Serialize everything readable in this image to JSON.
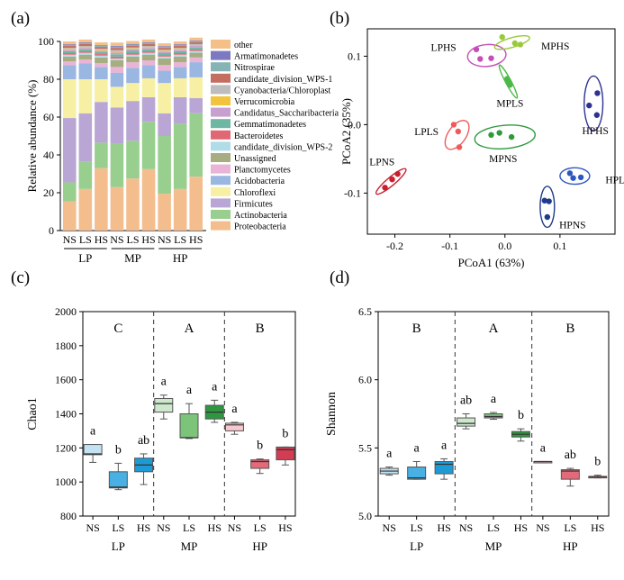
{
  "panel_labels": [
    "(a)",
    "(b)",
    "(c)",
    "(d)"
  ],
  "chart_data": [
    {
      "id": "a",
      "type": "bar",
      "subtype": "stacked-percent",
      "ylabel": "Relative abundance (%)",
      "ylim": [
        0,
        100
      ],
      "yticks": [
        0,
        20,
        40,
        60,
        80,
        100
      ],
      "groups": [
        {
          "name": "LP",
          "samples": [
            "NS",
            "LS",
            "HS"
          ]
        },
        {
          "name": "MP",
          "samples": [
            "NS",
            "LS",
            "HS"
          ]
        },
        {
          "name": "HP",
          "samples": [
            "NS",
            "LS",
            "HS"
          ]
        }
      ],
      "categories": [
        "LP-NS",
        "LP-LS",
        "LP-HS",
        "MP-NS",
        "MP-LS",
        "MP-HS",
        "HP-NS",
        "HP-LS",
        "HP-HS"
      ],
      "legend_position": "right",
      "series": [
        {
          "name": "Proteobacteria",
          "color": "#F4BD8E",
          "values": [
            15.5,
            22,
            33,
            23,
            27.5,
            32.5,
            19.5,
            22,
            28.5
          ]
        },
        {
          "name": "Actinobacteria",
          "color": "#98CE8E",
          "values": [
            10,
            14.5,
            13.5,
            23,
            20,
            25,
            30.5,
            34.5,
            33.5
          ]
        },
        {
          "name": "Firmicutes",
          "color": "#B9A6D4",
          "values": [
            34,
            25.5,
            21.5,
            19,
            21,
            13,
            12,
            14,
            8
          ]
        },
        {
          "name": "Chloroflexi",
          "color": "#F7F0A4",
          "values": [
            20.5,
            18,
            12,
            11,
            9.5,
            10,
            16,
            10,
            11
          ]
        },
        {
          "name": "Acidobacteria",
          "color": "#9AB7E2",
          "values": [
            7.5,
            8.5,
            6.5,
            7.5,
            8,
            7,
            6.5,
            6,
            8
          ]
        },
        {
          "name": "Planctomycetes",
          "color": "#E9B4D5",
          "values": [
            2,
            2,
            2,
            3,
            3,
            2.5,
            3,
            2.5,
            2.5
          ]
        },
        {
          "name": "Unassigned",
          "color": "#A7AD80",
          "values": [
            2.5,
            2.5,
            3,
            3.5,
            3,
            3,
            3.5,
            3,
            2.5
          ]
        },
        {
          "name": "candidate_division_WPS-2",
          "color": "#B0DCE8",
          "values": [
            1,
            1,
            1,
            1,
            1,
            1,
            1,
            1,
            1
          ]
        },
        {
          "name": "Bacteroidetes",
          "color": "#E06874",
          "values": [
            0.8,
            0.8,
            0.8,
            1,
            0.8,
            0.8,
            0.8,
            0.8,
            0.8
          ]
        },
        {
          "name": "Gemmatimonadetes",
          "color": "#6FB7A2",
          "values": [
            1,
            1,
            1,
            1.2,
            1.2,
            1,
            1,
            1,
            1
          ]
        },
        {
          "name": "Candidatus_Saccharibacteria",
          "color": "#C7A0CF",
          "values": [
            0.8,
            0.8,
            0.8,
            1,
            0.8,
            0.8,
            0.8,
            0.8,
            0.8
          ]
        },
        {
          "name": "Verrucomicrobia",
          "color": "#F2C33C",
          "values": [
            0.5,
            0.5,
            0.5,
            0.6,
            0.5,
            0.5,
            0.5,
            0.5,
            0.5
          ]
        },
        {
          "name": "Cyanobacteria/Chloroplast",
          "color": "#BDBDBD",
          "values": [
            0.5,
            0.5,
            0.5,
            0.6,
            0.5,
            0.5,
            0.5,
            0.5,
            0.5
          ]
        },
        {
          "name": "candidate_division_WPS-1",
          "color": "#C46E62",
          "values": [
            1,
            1,
            1,
            1.2,
            1,
            1,
            1,
            1,
            1
          ]
        },
        {
          "name": "Nitrospirae",
          "color": "#86B4B4",
          "values": [
            0.5,
            0.5,
            0.5,
            0.6,
            0.5,
            0.5,
            0.5,
            0.5,
            0.5
          ]
        },
        {
          "name": "Armatimonadetes",
          "color": "#7C79C0",
          "values": [
            0.4,
            0.4,
            0.4,
            0.4,
            0.4,
            0.4,
            0.4,
            0.4,
            0.4
          ]
        },
        {
          "name": "other",
          "color": "#F4C088",
          "values": [
            1.5,
            1.5,
            1.5,
            1.8,
            1.5,
            1.5,
            1.5,
            1.5,
            1.5
          ]
        }
      ]
    },
    {
      "id": "b",
      "type": "scatter",
      "xlabel": "PCoA1 (63%)",
      "ylabel": "PCoA2 (35%)",
      "xlim": [
        -0.25,
        0.2
      ],
      "ylim": [
        -0.16,
        0.14
      ],
      "xticks": [
        -0.2,
        -0.1,
        0.0,
        0.1
      ],
      "yticks": [
        -0.1,
        0.0,
        0.1
      ],
      "grid": false,
      "series": [
        {
          "name": "LPNS",
          "color": "#C8202E",
          "points": [
            [
              -0.218,
              -0.092
            ],
            [
              -0.205,
              -0.08
            ],
            [
              -0.195,
              -0.072
            ]
          ],
          "ellipse": {
            "cx": -0.207,
            "cy": -0.083,
            "rx": 0.035,
            "ry": 0.006,
            "angle": -40
          }
        },
        {
          "name": "LPLS",
          "color": "#EE5A5A",
          "points": [
            [
              -0.093,
              0.0
            ],
            [
              -0.085,
              -0.01
            ],
            [
              -0.083,
              -0.033
            ]
          ],
          "ellipse": {
            "cx": -0.087,
            "cy": -0.015,
            "rx": 0.03,
            "ry": 0.013,
            "angle": -55
          }
        },
        {
          "name": "LPHS",
          "color": "#C44FB8",
          "points": [
            [
              -0.052,
              0.11
            ],
            [
              -0.045,
              0.096
            ],
            [
              -0.025,
              0.097
            ]
          ],
          "ellipse": {
            "cx": -0.033,
            "cy": 0.101,
            "rx": 0.035,
            "ry": 0.016,
            "angle": -5
          }
        },
        {
          "name": "MPNS",
          "color": "#2F9A3C",
          "points": [
            [
              -0.025,
              -0.015
            ],
            [
              -0.01,
              -0.012
            ],
            [
              0.012,
              -0.018
            ]
          ],
          "ellipse": {
            "cx": 0.0,
            "cy": -0.018,
            "rx": 0.055,
            "ry": 0.017,
            "angle": -5
          }
        },
        {
          "name": "MPLS",
          "color": "#4DB848",
          "points": [
            [
              0.004,
              0.067
            ],
            [
              0.007,
              0.063
            ],
            [
              0.009,
              0.058
            ]
          ],
          "ellipse": {
            "cx": 0.006,
            "cy": 0.063,
            "rx": 0.034,
            "ry": 0.004,
            "angle": 62
          }
        },
        {
          "name": "MPHS",
          "color": "#99C93A",
          "points": [
            [
              -0.005,
              0.128
            ],
            [
              0.018,
              0.119
            ],
            [
              0.028,
              0.117
            ]
          ],
          "ellipse": {
            "cx": 0.013,
            "cy": 0.12,
            "rx": 0.033,
            "ry": 0.007,
            "angle": -16
          }
        },
        {
          "name": "HPNS",
          "color": "#1E3A8A",
          "points": [
            [
              0.072,
              -0.111
            ],
            [
              0.08,
              -0.112
            ],
            [
              0.077,
              -0.135
            ]
          ],
          "ellipse": {
            "cx": 0.077,
            "cy": -0.12,
            "rx": 0.013,
            "ry": 0.03,
            "angle": 0
          }
        },
        {
          "name": "HPLS",
          "color": "#2D57C0",
          "points": [
            [
              0.118,
              -0.071
            ],
            [
              0.124,
              -0.078
            ],
            [
              0.138,
              -0.077
            ]
          ],
          "ellipse": {
            "cx": 0.127,
            "cy": -0.075,
            "rx": 0.027,
            "ry": 0.012,
            "angle": 0
          }
        },
        {
          "name": "HPHS",
          "color": "#2E3192",
          "points": [
            [
              0.153,
              0.028
            ],
            [
              0.168,
              0.046
            ],
            [
              0.167,
              0.014
            ]
          ],
          "ellipse": {
            "cx": 0.161,
            "cy": 0.031,
            "rx": 0.017,
            "ry": 0.04,
            "angle": 0
          }
        }
      ]
    },
    {
      "id": "c",
      "type": "box",
      "ylabel": "Chao1",
      "ylim": [
        800,
        2000
      ],
      "yticks": [
        800,
        1000,
        1200,
        1400,
        1600,
        1800,
        2000
      ],
      "groups": [
        {
          "name": "LP",
          "letter": "C",
          "boxes": [
            {
              "label": "NS",
              "min": 1115,
              "q1": 1160,
              "median": 1165,
              "q3": 1220,
              "max": 1220,
              "sig": "a",
              "color": "#C2E3F3"
            },
            {
              "label": "LS",
              "min": 955,
              "q1": 965,
              "median": 970,
              "q3": 1060,
              "max": 1110,
              "sig": "b",
              "color": "#49B0E3"
            },
            {
              "label": "HS",
              "min": 985,
              "q1": 1060,
              "median": 1100,
              "q3": 1140,
              "max": 1165,
              "sig": "ab",
              "color": "#1E9BD7"
            }
          ]
        },
        {
          "name": "MP",
          "letter": "A",
          "boxes": [
            {
              "label": "NS",
              "min": 1370,
              "q1": 1410,
              "median": 1460,
              "q3": 1490,
              "max": 1510,
              "sig": "a",
              "color": "#CDE8CC"
            },
            {
              "label": "LS",
              "min": 1255,
              "q1": 1260,
              "median": 1260,
              "q3": 1400,
              "max": 1460,
              "sig": "a",
              "color": "#7DC47B"
            },
            {
              "label": "HS",
              "min": 1350,
              "q1": 1370,
              "median": 1410,
              "q3": 1450,
              "max": 1480,
              "sig": "a",
              "color": "#2E9740"
            }
          ]
        },
        {
          "name": "HP",
          "letter": "B",
          "boxes": [
            {
              "label": "NS",
              "min": 1280,
              "q1": 1300,
              "median": 1335,
              "q3": 1345,
              "max": 1350,
              "sig": "a",
              "color": "#F7C9CF"
            },
            {
              "label": "LS",
              "min": 1050,
              "q1": 1080,
              "median": 1120,
              "q3": 1130,
              "max": 1135,
              "sig": "b",
              "color": "#E46A7A"
            },
            {
              "label": "HS",
              "min": 1100,
              "q1": 1130,
              "median": 1190,
              "q3": 1205,
              "max": 1205,
              "sig": "b",
              "color": "#D23D53"
            }
          ]
        }
      ]
    },
    {
      "id": "d",
      "type": "box",
      "ylabel": "Shannon",
      "ylim": [
        5.0,
        6.5
      ],
      "yticks": [
        5.0,
        5.5,
        6.0,
        6.5
      ],
      "groups": [
        {
          "name": "LP",
          "letter": "B",
          "boxes": [
            {
              "label": "NS",
              "min": 5.3,
              "q1": 5.31,
              "median": 5.33,
              "q3": 5.35,
              "max": 5.36,
              "sig": "a",
              "color": "#C2E3F3"
            },
            {
              "label": "LS",
              "min": 5.27,
              "q1": 5.27,
              "median": 5.28,
              "q3": 5.36,
              "max": 5.4,
              "sig": "a",
              "color": "#49B0E3"
            },
            {
              "label": "HS",
              "min": 5.27,
              "q1": 5.31,
              "median": 5.38,
              "q3": 5.4,
              "max": 5.42,
              "sig": "a",
              "color": "#1E9BD7"
            }
          ]
        },
        {
          "name": "MP",
          "letter": "A",
          "boxes": [
            {
              "label": "NS",
              "min": 5.64,
              "q1": 5.66,
              "median": 5.68,
              "q3": 5.72,
              "max": 5.75,
              "sig": "ab",
              "color": "#CDE8CC"
            },
            {
              "label": "LS",
              "min": 5.71,
              "q1": 5.72,
              "median": 5.73,
              "q3": 5.75,
              "max": 5.76,
              "sig": "a",
              "color": "#7DC47B"
            },
            {
              "label": "HS",
              "min": 5.55,
              "q1": 5.58,
              "median": 5.6,
              "q3": 5.62,
              "max": 5.64,
              "sig": "b",
              "color": "#2E9740"
            }
          ]
        },
        {
          "name": "HP",
          "letter": "B",
          "boxes": [
            {
              "label": "NS",
              "min": 5.39,
              "q1": 5.39,
              "median": 5.4,
              "q3": 5.4,
              "max": 5.4,
              "sig": "a",
              "color": "#F7C9CF"
            },
            {
              "label": "LS",
              "min": 5.22,
              "q1": 5.27,
              "median": 5.33,
              "q3": 5.34,
              "max": 5.35,
              "sig": "ab",
              "color": "#E46A7A"
            },
            {
              "label": "HS",
              "min": 5.28,
              "q1": 5.28,
              "median": 5.29,
              "q3": 5.29,
              "max": 5.3,
              "sig": "b",
              "color": "#D23D53"
            }
          ]
        }
      ]
    }
  ]
}
